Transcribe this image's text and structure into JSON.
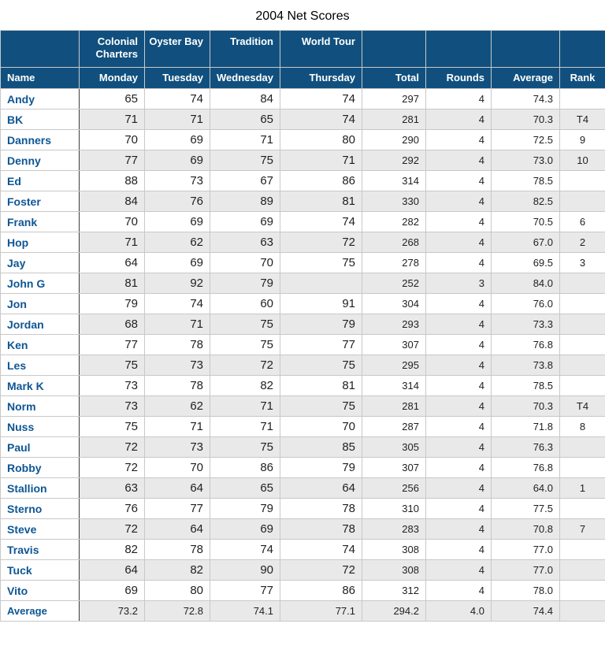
{
  "title": "2004 Net Scores",
  "colors": {
    "header_bg": "#11507E",
    "header_text": "#FFFFFF",
    "name_text": "#0E5694",
    "body_text": "#1F1F1F",
    "stripe_bg": "#E9E9E9",
    "grid_border": "#C8C8C8",
    "name_divider": "#3C3C3C",
    "page_bg": "#FFFFFF",
    "title_text": "#000000"
  },
  "table": {
    "course_header_row": [
      "",
      "Colonial Charters",
      "Oyster Bay",
      "Tradition",
      "World Tour",
      "",
      "",
      "",
      ""
    ],
    "column_header_row": [
      "Name",
      "Monday",
      "Tuesday",
      "Wednesday",
      "Thursday",
      "Total",
      "Rounds",
      "Average",
      "Rank"
    ],
    "rows": [
      [
        "Andy",
        "65",
        "74",
        "84",
        "74",
        "297",
        "4",
        "74.3",
        ""
      ],
      [
        "BK",
        "71",
        "71",
        "65",
        "74",
        "281",
        "4",
        "70.3",
        "T4"
      ],
      [
        "Danners",
        "70",
        "69",
        "71",
        "80",
        "290",
        "4",
        "72.5",
        "9"
      ],
      [
        "Denny",
        "77",
        "69",
        "75",
        "71",
        "292",
        "4",
        "73.0",
        "10"
      ],
      [
        "Ed",
        "88",
        "73",
        "67",
        "86",
        "314",
        "4",
        "78.5",
        ""
      ],
      [
        "Foster",
        "84",
        "76",
        "89",
        "81",
        "330",
        "4",
        "82.5",
        ""
      ],
      [
        "Frank",
        "70",
        "69",
        "69",
        "74",
        "282",
        "4",
        "70.5",
        "6"
      ],
      [
        "Hop",
        "71",
        "62",
        "63",
        "72",
        "268",
        "4",
        "67.0",
        "2"
      ],
      [
        "Jay",
        "64",
        "69",
        "70",
        "75",
        "278",
        "4",
        "69.5",
        "3"
      ],
      [
        "John G",
        "81",
        "92",
        "79",
        "",
        "252",
        "3",
        "84.0",
        ""
      ],
      [
        "Jon",
        "79",
        "74",
        "60",
        "91",
        "304",
        "4",
        "76.0",
        ""
      ],
      [
        "Jordan",
        "68",
        "71",
        "75",
        "79",
        "293",
        "4",
        "73.3",
        ""
      ],
      [
        "Ken",
        "77",
        "78",
        "75",
        "77",
        "307",
        "4",
        "76.8",
        ""
      ],
      [
        "Les",
        "75",
        "73",
        "72",
        "75",
        "295",
        "4",
        "73.8",
        ""
      ],
      [
        "Mark K",
        "73",
        "78",
        "82",
        "81",
        "314",
        "4",
        "78.5",
        ""
      ],
      [
        "Norm",
        "73",
        "62",
        "71",
        "75",
        "281",
        "4",
        "70.3",
        "T4"
      ],
      [
        "Nuss",
        "75",
        "71",
        "71",
        "70",
        "287",
        "4",
        "71.8",
        "8"
      ],
      [
        "Paul",
        "72",
        "73",
        "75",
        "85",
        "305",
        "4",
        "76.3",
        ""
      ],
      [
        "Robby",
        "72",
        "70",
        "86",
        "79",
        "307",
        "4",
        "76.8",
        ""
      ],
      [
        "Stallion",
        "63",
        "64",
        "65",
        "64",
        "256",
        "4",
        "64.0",
        "1"
      ],
      [
        "Sterno",
        "76",
        "77",
        "79",
        "78",
        "310",
        "4",
        "77.5",
        ""
      ],
      [
        "Steve",
        "72",
        "64",
        "69",
        "78",
        "283",
        "4",
        "70.8",
        "7"
      ],
      [
        "Travis",
        "82",
        "78",
        "74",
        "74",
        "308",
        "4",
        "77.0",
        ""
      ],
      [
        "Tuck",
        "64",
        "82",
        "90",
        "72",
        "308",
        "4",
        "77.0",
        ""
      ],
      [
        "Vito",
        "69",
        "80",
        "77",
        "86",
        "312",
        "4",
        "78.0",
        ""
      ],
      [
        "Average",
        "73.2",
        "72.8",
        "74.1",
        "77.1",
        "294.2",
        "4.0",
        "74.4",
        ""
      ]
    ]
  }
}
